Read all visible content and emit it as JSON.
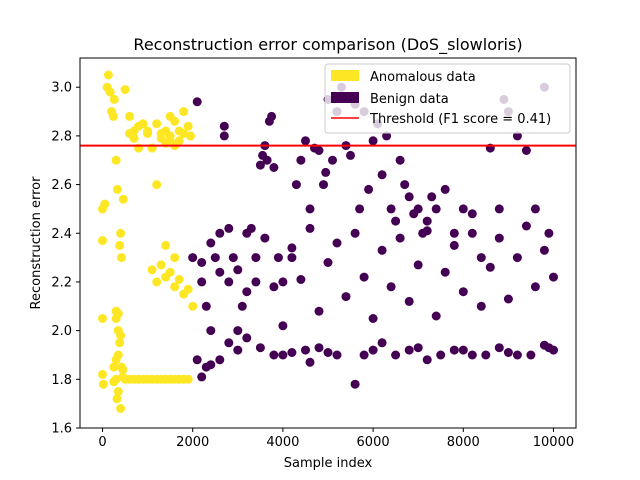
{
  "chart_data": {
    "type": "scatter",
    "title": "Reconstruction error comparison (DoS_slowloris)",
    "xlabel": "Sample index",
    "ylabel": "Reconstruction error",
    "xlim": [
      -500,
      10500
    ],
    "ylim": [
      1.6,
      3.12
    ],
    "xticks": [
      0,
      2000,
      4000,
      6000,
      8000,
      10000
    ],
    "xtick_labels": [
      "0",
      "2000",
      "4000",
      "6000",
      "8000",
      "10000"
    ],
    "yticks": [
      1.6,
      1.8,
      2.0,
      2.2,
      2.4,
      2.6,
      2.8,
      3.0
    ],
    "ytick_labels": [
      "1.6",
      "1.8",
      "2.0",
      "2.2",
      "2.4",
      "2.6",
      "2.8",
      "3.0"
    ],
    "legend_position": "top-right",
    "threshold": {
      "label": "Threshold (F1 score = 0.41)",
      "value": 2.76,
      "color": "#ff0000"
    },
    "series": [
      {
        "name": "Anomalous data",
        "color": "#fde725",
        "points": [
          [
            0,
            1.82
          ],
          [
            20,
            1.78
          ],
          [
            0,
            2.5
          ],
          [
            0,
            2.37
          ],
          [
            0,
            2.05
          ],
          [
            50,
            2.52
          ],
          [
            100,
            3.0
          ],
          [
            130,
            3.05
          ],
          [
            170,
            2.98
          ],
          [
            200,
            2.9
          ],
          [
            240,
            2.88
          ],
          [
            260,
            2.95
          ],
          [
            300,
            2.7
          ],
          [
            330,
            2.58
          ],
          [
            380,
            2.35
          ],
          [
            400,
            2.4
          ],
          [
            420,
            2.3
          ],
          [
            460,
            2.54
          ],
          [
            500,
            2.99
          ],
          [
            600,
            2.88
          ],
          [
            700,
            2.79
          ],
          [
            800,
            2.75
          ],
          [
            900,
            2.85
          ],
          [
            1000,
            2.82
          ],
          [
            1100,
            2.75
          ],
          [
            1200,
            2.6
          ],
          [
            1400,
            2.82
          ],
          [
            1500,
            2.88
          ],
          [
            1600,
            2.86
          ],
          [
            1700,
            2.78
          ],
          [
            1800,
            2.9
          ],
          [
            1900,
            2.84
          ],
          [
            1950,
            2.8
          ],
          [
            300,
            2.08
          ],
          [
            350,
            2.07
          ],
          [
            300,
            2.05
          ],
          [
            350,
            2.0
          ],
          [
            400,
            1.98
          ],
          [
            350,
            1.9
          ],
          [
            380,
            1.95
          ],
          [
            300,
            1.88
          ],
          [
            250,
            1.85
          ],
          [
            420,
            1.85
          ],
          [
            450,
            1.84
          ],
          [
            300,
            1.8
          ],
          [
            350,
            1.75
          ],
          [
            320,
            1.72
          ],
          [
            400,
            1.68
          ],
          [
            250,
            1.79
          ],
          [
            450,
            1.81
          ],
          [
            500,
            1.8
          ],
          [
            600,
            1.8
          ],
          [
            700,
            1.8
          ],
          [
            800,
            1.8
          ],
          [
            900,
            1.8
          ],
          [
            1000,
            1.8
          ],
          [
            1100,
            1.8
          ],
          [
            1200,
            1.8
          ],
          [
            1300,
            1.8
          ],
          [
            1400,
            1.8
          ],
          [
            1500,
            1.8
          ],
          [
            1600,
            1.8
          ],
          [
            1700,
            1.8
          ],
          [
            1800,
            1.8
          ],
          [
            1900,
            1.8
          ],
          [
            1100,
            2.25
          ],
          [
            1200,
            2.2
          ],
          [
            1300,
            2.27
          ],
          [
            1400,
            2.22
          ],
          [
            1500,
            2.24
          ],
          [
            1600,
            2.18
          ],
          [
            1700,
            2.21
          ],
          [
            1400,
            2.35
          ],
          [
            1600,
            2.3
          ],
          [
            1800,
            2.15
          ],
          [
            1900,
            2.17
          ],
          [
            2000,
            2.1
          ],
          [
            600,
            2.81
          ],
          [
            700,
            2.82
          ],
          [
            800,
            2.84
          ],
          [
            1000,
            2.81
          ],
          [
            1200,
            2.85
          ],
          [
            1300,
            2.81
          ],
          [
            1400,
            2.77
          ],
          [
            1500,
            2.8
          ],
          [
            1600,
            2.76
          ],
          [
            1800,
            2.81
          ],
          [
            1500,
            2.78
          ],
          [
            1300,
            2.79
          ],
          [
            1700,
            2.82
          ]
        ]
      },
      {
        "name": "Benign data",
        "color": "#440154",
        "points": [
          [
            2000,
            2.3
          ],
          [
            2100,
            2.94
          ],
          [
            2200,
            2.2
          ],
          [
            2300,
            2.1
          ],
          [
            2400,
            2.0
          ],
          [
            2500,
            2.3
          ],
          [
            2600,
            2.4
          ],
          [
            2700,
            2.84
          ],
          [
            2700,
            2.8
          ],
          [
            2800,
            2.2
          ],
          [
            2900,
            2.3
          ],
          [
            3000,
            2.0
          ],
          [
            3100,
            2.1
          ],
          [
            3200,
            2.4
          ],
          [
            3300,
            2.42
          ],
          [
            3400,
            2.2
          ],
          [
            3500,
            2.68
          ],
          [
            3550,
            2.72
          ],
          [
            3600,
            2.76
          ],
          [
            3650,
            2.7
          ],
          [
            3700,
            2.86
          ],
          [
            3750,
            2.88
          ],
          [
            3800,
            2.67
          ],
          [
            3900,
            2.3
          ],
          [
            4000,
            2.2
          ],
          [
            4200,
            2.3
          ],
          [
            4300,
            2.6
          ],
          [
            4400,
            2.7
          ],
          [
            4500,
            2.78
          ],
          [
            4600,
            2.5
          ],
          [
            4700,
            2.75
          ],
          [
            4800,
            2.74
          ],
          [
            4900,
            2.6
          ],
          [
            4950,
            2.65
          ],
          [
            5000,
            2.95
          ],
          [
            5100,
            2.7
          ],
          [
            5200,
            2.9
          ],
          [
            5300,
            3.0
          ],
          [
            5400,
            2.76
          ],
          [
            5500,
            2.72
          ],
          [
            5600,
            2.93
          ],
          [
            5700,
            2.5
          ],
          [
            5800,
            2.9
          ],
          [
            5900,
            2.58
          ],
          [
            6000,
            2.78
          ],
          [
            6100,
            2.85
          ],
          [
            6200,
            2.64
          ],
          [
            6300,
            2.8
          ],
          [
            6400,
            2.5
          ],
          [
            6500,
            2.45
          ],
          [
            6600,
            2.7
          ],
          [
            6700,
            2.6
          ],
          [
            6800,
            2.55
          ],
          [
            6900,
            2.48
          ],
          [
            7000,
            2.5
          ],
          [
            7100,
            2.4
          ],
          [
            7200,
            2.45
          ],
          [
            7300,
            2.55
          ],
          [
            7400,
            2.5
          ],
          [
            7600,
            2.58
          ],
          [
            7800,
            2.4
          ],
          [
            8000,
            2.5
          ],
          [
            8200,
            2.48
          ],
          [
            8400,
            2.3
          ],
          [
            8600,
            2.75
          ],
          [
            8800,
            2.5
          ],
          [
            8900,
            2.95
          ],
          [
            9000,
            2.9
          ],
          [
            9200,
            2.8
          ],
          [
            9400,
            2.74
          ],
          [
            9600,
            2.5
          ],
          [
            9800,
            3.0
          ],
          [
            9900,
            2.4
          ],
          [
            4800,
            1.93
          ],
          [
            5600,
            1.78
          ],
          [
            2400,
            1.86
          ],
          [
            2600,
            1.88
          ],
          [
            3000,
            1.92
          ],
          [
            3500,
            1.93
          ],
          [
            4000,
            1.9
          ],
          [
            4500,
            1.92
          ],
          [
            5000,
            1.91
          ],
          [
            6000,
            1.92
          ],
          [
            6500,
            1.9
          ],
          [
            7000,
            1.93
          ],
          [
            7500,
            1.9
          ],
          [
            8000,
            1.92
          ],
          [
            8500,
            1.9
          ],
          [
            9000,
            1.91
          ],
          [
            9500,
            1.9
          ],
          [
            9900,
            1.93
          ],
          [
            10000,
            1.92
          ],
          [
            2100,
            1.88
          ],
          [
            2200,
            1.81
          ],
          [
            2300,
            1.85
          ],
          [
            2800,
            1.95
          ],
          [
            3200,
            1.97
          ],
          [
            3800,
            1.9
          ],
          [
            4200,
            1.91
          ],
          [
            4600,
            1.87
          ],
          [
            5200,
            1.9
          ],
          [
            5800,
            1.9
          ],
          [
            6200,
            1.95
          ],
          [
            6800,
            1.92
          ],
          [
            7200,
            1.88
          ],
          [
            7800,
            1.92
          ],
          [
            8200,
            1.9
          ],
          [
            8800,
            1.93
          ],
          [
            9200,
            1.9
          ],
          [
            9800,
            1.94
          ],
          [
            2200,
            2.28
          ],
          [
            2400,
            2.36
          ],
          [
            2600,
            2.24
          ],
          [
            2800,
            2.42
          ],
          [
            3000,
            2.25
          ],
          [
            3200,
            2.16
          ],
          [
            3400,
            2.3
          ],
          [
            3600,
            2.38
          ],
          [
            3800,
            2.18
          ],
          [
            4000,
            2.02
          ],
          [
            4200,
            2.34
          ],
          [
            4400,
            2.21
          ],
          [
            4600,
            2.42
          ],
          [
            4800,
            2.08
          ],
          [
            5000,
            2.28
          ],
          [
            5200,
            2.36
          ],
          [
            5400,
            2.14
          ],
          [
            5600,
            2.4
          ],
          [
            5800,
            2.22
          ],
          [
            6000,
            2.05
          ],
          [
            6200,
            2.33
          ],
          [
            6400,
            2.18
          ],
          [
            6600,
            2.38
          ],
          [
            6800,
            2.12
          ],
          [
            7000,
            2.27
          ],
          [
            7200,
            2.41
          ],
          [
            7400,
            2.06
          ],
          [
            7600,
            2.24
          ],
          [
            7800,
            2.35
          ],
          [
            8000,
            2.16
          ],
          [
            8200,
            2.4
          ],
          [
            8400,
            2.1
          ],
          [
            8600,
            2.26
          ],
          [
            8800,
            2.38
          ],
          [
            9000,
            2.13
          ],
          [
            9200,
            2.3
          ],
          [
            9400,
            2.43
          ],
          [
            9600,
            2.18
          ],
          [
            9800,
            2.33
          ],
          [
            10000,
            2.22
          ]
        ]
      }
    ]
  }
}
